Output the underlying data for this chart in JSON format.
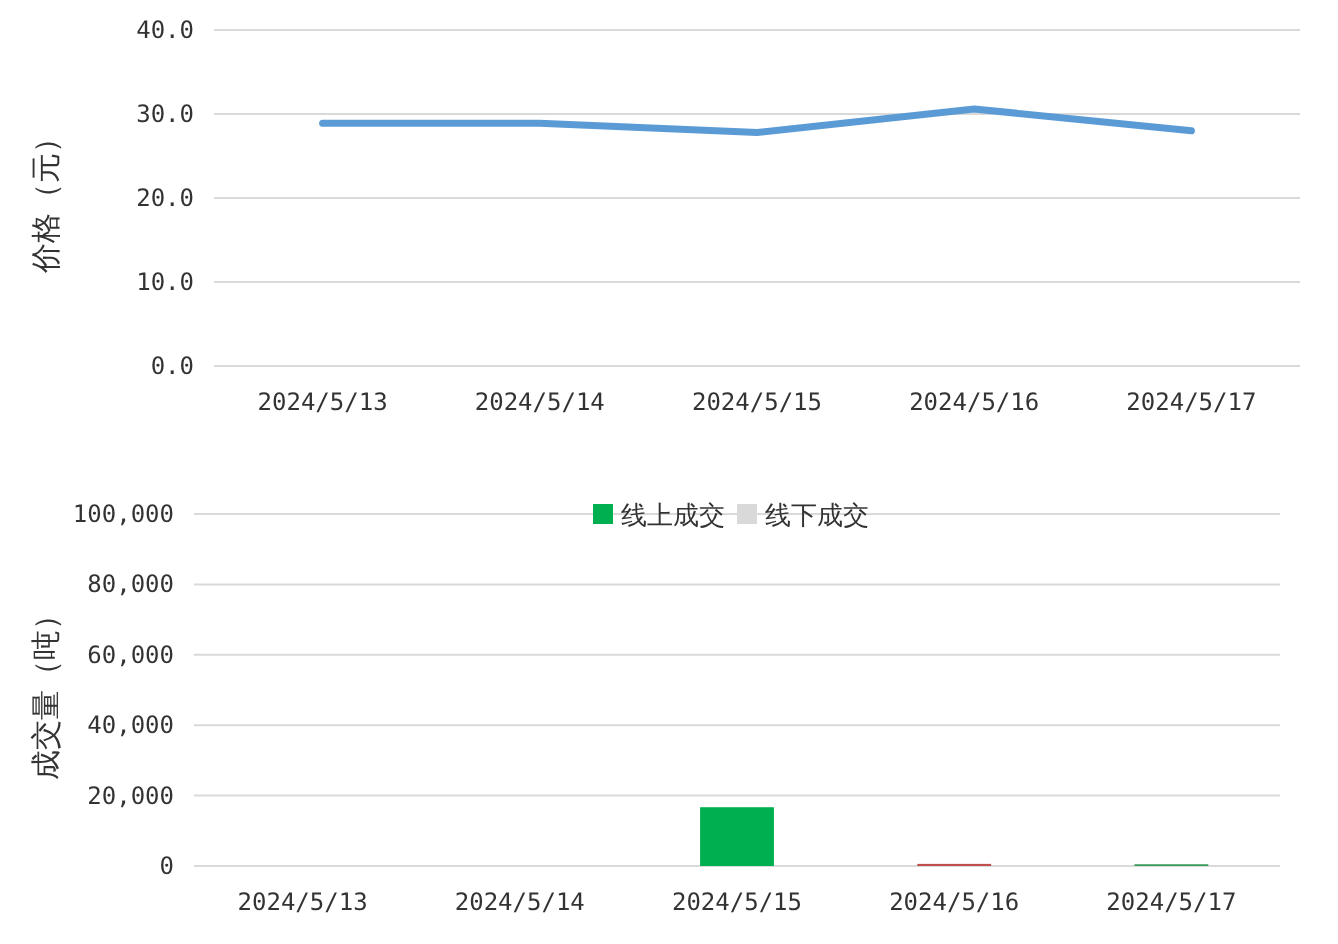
{
  "chart_data": [
    {
      "type": "line",
      "ylabel": "价格（元）",
      "categories": [
        "2024/5/13",
        "2024/5/14",
        "2024/5/15",
        "2024/5/16",
        "2024/5/17"
      ],
      "series": [
        {
          "color": "#5b9bd5",
          "values": [
            28.9,
            28.9,
            27.8,
            30.6,
            28.0
          ]
        }
      ],
      "ylim": [
        0,
        40
      ],
      "yticks": [
        {
          "value": 0,
          "label": "0.0"
        },
        {
          "value": 10,
          "label": "10.0"
        },
        {
          "value": 20,
          "label": "20.0"
        },
        {
          "value": 30,
          "label": "30.0"
        },
        {
          "value": 40,
          "label": "40.0"
        }
      ],
      "grid": "y",
      "legend": false,
      "marker": "none",
      "line_style": "solid"
    },
    {
      "type": "bar",
      "stacked": true,
      "ylabel": "成交量（吨）",
      "categories": [
        "2024/5/13",
        "2024/5/14",
        "2024/5/15",
        "2024/5/16",
        "2024/5/17"
      ],
      "series": [
        {
          "name": "线上成交",
          "color": "#00b050",
          "colors": [
            "#00b050",
            "#00b050",
            "#00b050",
            "#c0504d",
            "#3a9a5a"
          ],
          "values": [
            0,
            0,
            16700,
            600,
            500
          ]
        },
        {
          "name": "线下成交",
          "color": "#d9d9d9",
          "values": [
            0,
            0,
            0,
            0,
            0
          ]
        }
      ],
      "ylim": [
        0,
        100000
      ],
      "yticks": [
        {
          "value": 0,
          "label": "0"
        },
        {
          "value": 20000,
          "label": "20,000"
        },
        {
          "value": 40000,
          "label": "40,000"
        },
        {
          "value": 60000,
          "label": "60,000"
        },
        {
          "value": 80000,
          "label": "80,000"
        },
        {
          "value": 100000,
          "label": "100,000"
        }
      ],
      "grid": "y",
      "legend": "top"
    }
  ]
}
